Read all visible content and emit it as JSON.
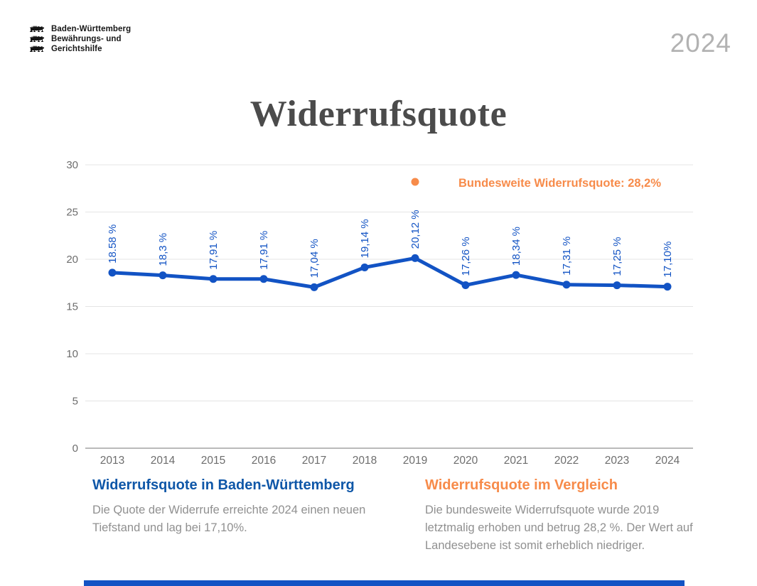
{
  "page": {
    "year_badge": "2024",
    "title": "Widerrufsquote"
  },
  "logo": {
    "lines": [
      "Baden-Württemberg",
      "Bewährungs- und",
      "Gerichtshilfe"
    ]
  },
  "colors": {
    "line_blue": "#1253c4",
    "heading_blue": "#0f57a8",
    "accent_orange": "#f78b4a",
    "axis_gray": "#6d6d6d",
    "grid_gray": "#e4e4e4",
    "baseline_gray": "#a3a3a3",
    "body_gray": "#909090",
    "title_gray": "#4b4b4b",
    "year_gray": "#b2b2b2"
  },
  "chart_data": {
    "type": "line",
    "title": "Widerrufsquote",
    "categories": [
      "2013",
      "2014",
      "2015",
      "2016",
      "2017",
      "2018",
      "2019",
      "2020",
      "2021",
      "2022",
      "2023",
      "2024"
    ],
    "values": [
      18.58,
      18.3,
      17.91,
      17.91,
      17.04,
      19.14,
      20.12,
      17.26,
      18.34,
      17.31,
      17.25,
      17.1
    ],
    "point_labels": [
      "18.58 %",
      "18,3 %",
      "17,91 %",
      "17,91 %",
      "17,04 %",
      "19,14 %",
      "20,12 %",
      "17,26 %",
      "18,34 %",
      "17,31 %",
      "17,25 %",
      "17,10%"
    ],
    "xlabel": "",
    "ylabel": "",
    "ylim": [
      0,
      30
    ],
    "yticks": [
      0,
      5,
      10,
      15,
      20,
      25,
      30
    ],
    "grid": true,
    "line_color": "#1253c4",
    "label_color": "#1253c4",
    "legend": {
      "label": "Bundesweite Widerrufsquote: 28,2%",
      "position": "top-right",
      "marker_color": "#f78b4a"
    }
  },
  "footer": {
    "left": {
      "heading": "Widerrufsquote in Baden-Württemberg",
      "body_lines": [
        "Die Quote der Widerrufe erreichte 2024 einen neuen",
        "Tiefstand und lag bei 17,10%."
      ]
    },
    "right": {
      "heading": "Widerrufsquote im Vergleich",
      "body_lines": [
        "Die bundesweite Widerrufsquote wurde 2019",
        "letztmalig erhoben und betrug 28,2 %. Der Wert auf",
        "Landesebene ist somit erheblich niedriger."
      ]
    }
  }
}
